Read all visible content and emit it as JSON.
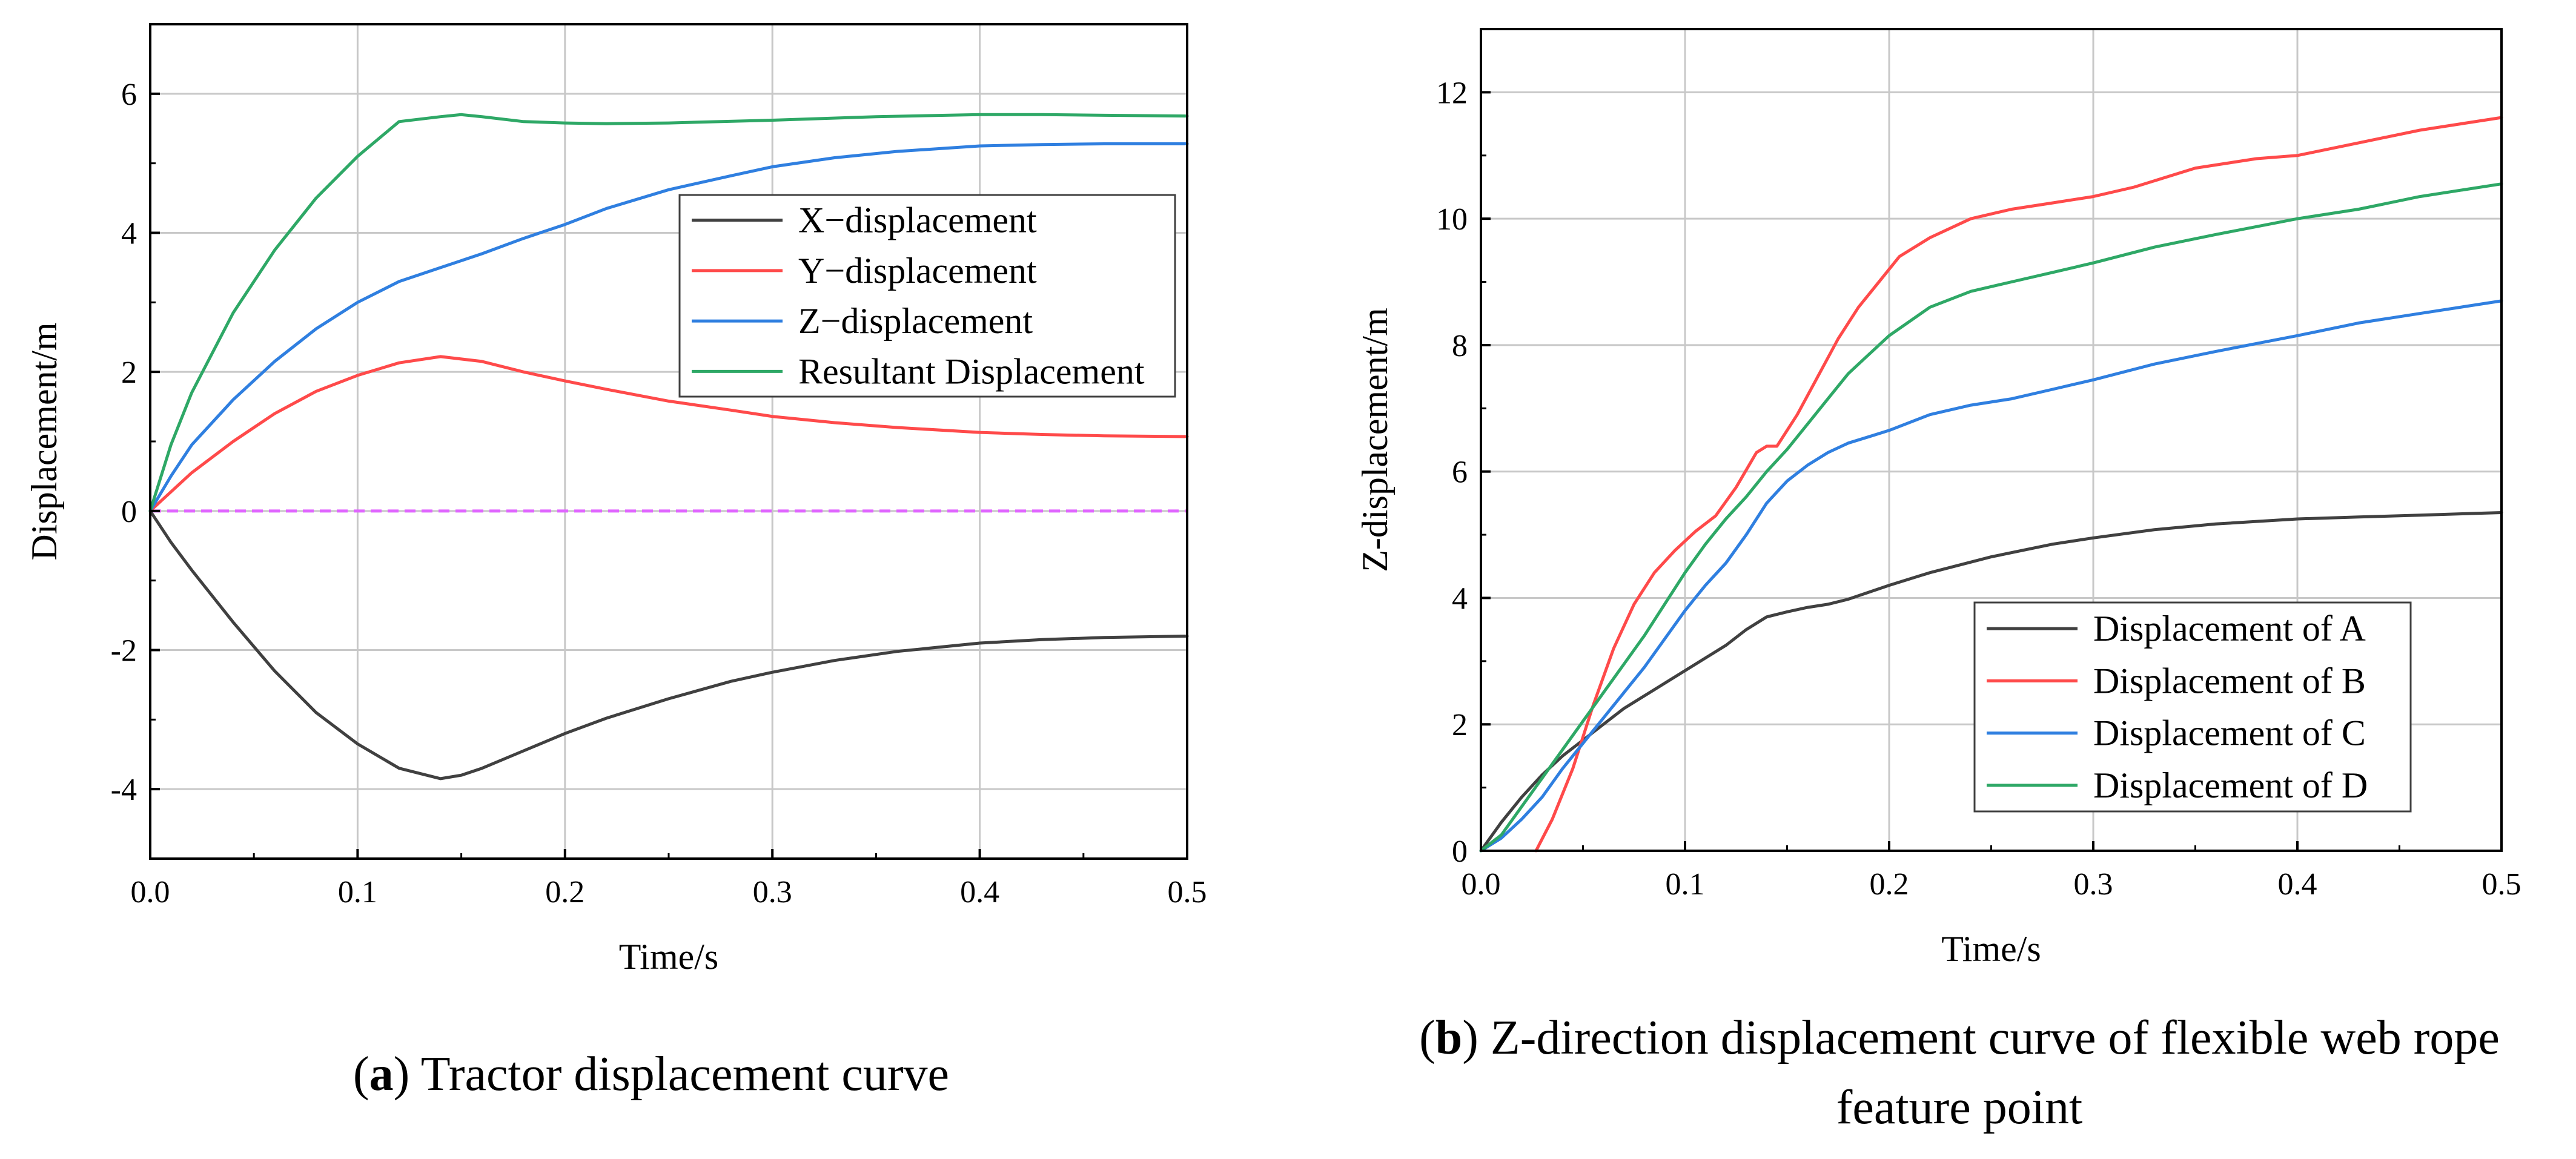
{
  "chart_data": [
    {
      "type": "line",
      "panel": "a",
      "caption_letter": "a",
      "caption_rest": ") Tractor displacement curve",
      "xlabel": "Time/s",
      "ylabel": "Displacement/m",
      "xlim": [
        0.0,
        0.5
      ],
      "ylim": [
        -5,
        7
      ],
      "xticks": [
        0.0,
        0.1,
        0.2,
        0.3,
        0.4,
        0.5
      ],
      "xtick_labels": [
        "0.0",
        "0.1",
        "0.2",
        "0.3",
        "0.4",
        "0.5"
      ],
      "yticks": [
        -4,
        -2,
        0,
        2,
        4,
        6
      ],
      "ytick_labels": [
        "-4",
        "-2",
        "0",
        "2",
        "4",
        "6"
      ],
      "grid": true,
      "legend_position": "upper-right",
      "zero_line_color": "#e066ff",
      "series": [
        {
          "name": "X−displacement",
          "color": "#404040",
          "x": [
            0,
            0.01,
            0.02,
            0.04,
            0.06,
            0.08,
            0.1,
            0.12,
            0.14,
            0.15,
            0.16,
            0.18,
            0.2,
            0.22,
            0.25,
            0.28,
            0.3,
            0.33,
            0.36,
            0.4,
            0.43,
            0.46,
            0.5
          ],
          "y": [
            0,
            -0.45,
            -0.85,
            -1.6,
            -2.3,
            -2.9,
            -3.35,
            -3.7,
            -3.85,
            -3.8,
            -3.7,
            -3.45,
            -3.2,
            -2.98,
            -2.7,
            -2.45,
            -2.32,
            -2.15,
            -2.02,
            -1.9,
            -1.85,
            -1.82,
            -1.8
          ]
        },
        {
          "name": "Y−displacement",
          "color": "#ff4a4a",
          "x": [
            0,
            0.02,
            0.04,
            0.06,
            0.08,
            0.1,
            0.12,
            0.14,
            0.16,
            0.18,
            0.2,
            0.22,
            0.25,
            0.28,
            0.3,
            0.33,
            0.36,
            0.4,
            0.43,
            0.46,
            0.5
          ],
          "y": [
            0,
            0.55,
            1.0,
            1.4,
            1.72,
            1.95,
            2.13,
            2.22,
            2.15,
            2.0,
            1.87,
            1.75,
            1.58,
            1.45,
            1.36,
            1.27,
            1.2,
            1.13,
            1.1,
            1.08,
            1.07
          ]
        },
        {
          "name": "Z−displacement",
          "color": "#2f7fe0",
          "x": [
            0,
            0.01,
            0.02,
            0.04,
            0.06,
            0.08,
            0.1,
            0.12,
            0.14,
            0.16,
            0.18,
            0.2,
            0.22,
            0.25,
            0.28,
            0.3,
            0.33,
            0.36,
            0.4,
            0.43,
            0.46,
            0.5
          ],
          "y": [
            0,
            0.5,
            0.95,
            1.6,
            2.15,
            2.62,
            3.0,
            3.3,
            3.5,
            3.7,
            3.92,
            4.12,
            4.35,
            4.62,
            4.82,
            4.95,
            5.08,
            5.17,
            5.25,
            5.27,
            5.28,
            5.28
          ]
        },
        {
          "name": "Resultant Displacement",
          "color": "#2ea866",
          "x": [
            0,
            0.01,
            0.02,
            0.04,
            0.06,
            0.08,
            0.1,
            0.12,
            0.14,
            0.15,
            0.16,
            0.18,
            0.2,
            0.22,
            0.25,
            0.3,
            0.35,
            0.4,
            0.43,
            0.46,
            0.5
          ],
          "y": [
            0,
            0.95,
            1.7,
            2.85,
            3.75,
            4.5,
            5.1,
            5.6,
            5.67,
            5.7,
            5.67,
            5.6,
            5.58,
            5.57,
            5.58,
            5.62,
            5.67,
            5.7,
            5.7,
            5.69,
            5.68
          ]
        }
      ]
    },
    {
      "type": "line",
      "panel": "b",
      "caption_letter": "b",
      "caption_rest_line1": ") Z-direction displacement curve of flexible web rope",
      "caption_line2": "feature point",
      "xlabel": "Time/s",
      "ylabel": "Z-displacement/m",
      "xlim": [
        0.0,
        0.5
      ],
      "ylim": [
        0,
        13
      ],
      "xticks": [
        0.0,
        0.1,
        0.2,
        0.3,
        0.4,
        0.5
      ],
      "xtick_labels": [
        "0.0",
        "0.1",
        "0.2",
        "0.3",
        "0.4",
        "0.5"
      ],
      "yticks": [
        0,
        2,
        4,
        6,
        8,
        10,
        12
      ],
      "ytick_labels": [
        "0",
        "2",
        "4",
        "6",
        "8",
        "10",
        "12"
      ],
      "grid": true,
      "legend_position": "lower-right",
      "series": [
        {
          "name": "Displacement of A",
          "color": "#404040",
          "x": [
            0,
            0.01,
            0.02,
            0.03,
            0.04,
            0.05,
            0.06,
            0.07,
            0.08,
            0.09,
            0.1,
            0.11,
            0.12,
            0.13,
            0.14,
            0.15,
            0.16,
            0.17,
            0.18,
            0.2,
            0.22,
            0.25,
            0.28,
            0.3,
            0.33,
            0.36,
            0.4,
            0.43,
            0.46,
            0.5
          ],
          "y": [
            0,
            0.45,
            0.85,
            1.2,
            1.5,
            1.75,
            2.0,
            2.25,
            2.45,
            2.65,
            2.85,
            3.05,
            3.25,
            3.5,
            3.7,
            3.78,
            3.85,
            3.9,
            3.98,
            4.2,
            4.4,
            4.65,
            4.85,
            4.95,
            5.08,
            5.17,
            5.25,
            5.28,
            5.31,
            5.35
          ]
        },
        {
          "name": "Displacement of B",
          "color": "#ff4a4a",
          "x": [
            0.027,
            0.035,
            0.045,
            0.055,
            0.065,
            0.075,
            0.085,
            0.095,
            0.105,
            0.115,
            0.125,
            0.135,
            0.14,
            0.145,
            0.155,
            0.165,
            0.175,
            0.185,
            0.195,
            0.205,
            0.22,
            0.24,
            0.26,
            0.28,
            0.3,
            0.32,
            0.35,
            0.38,
            0.4,
            0.43,
            0.46,
            0.5
          ],
          "y": [
            0,
            0.5,
            1.3,
            2.3,
            3.2,
            3.9,
            4.4,
            4.75,
            5.05,
            5.3,
            5.75,
            6.3,
            6.4,
            6.4,
            6.9,
            7.5,
            8.1,
            8.6,
            9.0,
            9.4,
            9.7,
            10.0,
            10.15,
            10.25,
            10.35,
            10.5,
            10.8,
            10.95,
            11.0,
            11.2,
            11.4,
            11.6
          ]
        },
        {
          "name": "Displacement of C",
          "color": "#2f7fe0",
          "x": [
            0,
            0.01,
            0.02,
            0.03,
            0.04,
            0.05,
            0.06,
            0.07,
            0.08,
            0.09,
            0.1,
            0.11,
            0.12,
            0.13,
            0.14,
            0.15,
            0.16,
            0.17,
            0.18,
            0.19,
            0.2,
            0.22,
            0.24,
            0.26,
            0.28,
            0.3,
            0.33,
            0.36,
            0.4,
            0.43,
            0.46,
            0.5
          ],
          "y": [
            0,
            0.2,
            0.5,
            0.85,
            1.3,
            1.7,
            2.1,
            2.5,
            2.9,
            3.35,
            3.8,
            4.2,
            4.55,
            5.0,
            5.5,
            5.85,
            6.1,
            6.3,
            6.45,
            6.55,
            6.65,
            6.9,
            7.05,
            7.15,
            7.3,
            7.45,
            7.7,
            7.9,
            8.15,
            8.35,
            8.5,
            8.7
          ]
        },
        {
          "name": "Displacement of D",
          "color": "#2ea866",
          "x": [
            0,
            0.01,
            0.02,
            0.03,
            0.04,
            0.05,
            0.06,
            0.07,
            0.08,
            0.09,
            0.1,
            0.11,
            0.12,
            0.13,
            0.14,
            0.15,
            0.16,
            0.17,
            0.18,
            0.19,
            0.2,
            0.22,
            0.24,
            0.26,
            0.28,
            0.3,
            0.33,
            0.36,
            0.4,
            0.43,
            0.46,
            0.5
          ],
          "y": [
            0,
            0.25,
            0.7,
            1.15,
            1.6,
            2.05,
            2.5,
            2.95,
            3.4,
            3.9,
            4.4,
            4.85,
            5.25,
            5.6,
            6.0,
            6.35,
            6.75,
            7.15,
            7.55,
            7.85,
            8.15,
            8.6,
            8.85,
            9.0,
            9.15,
            9.3,
            9.55,
            9.75,
            10.0,
            10.15,
            10.35,
            10.55
          ]
        }
      ]
    }
  ]
}
